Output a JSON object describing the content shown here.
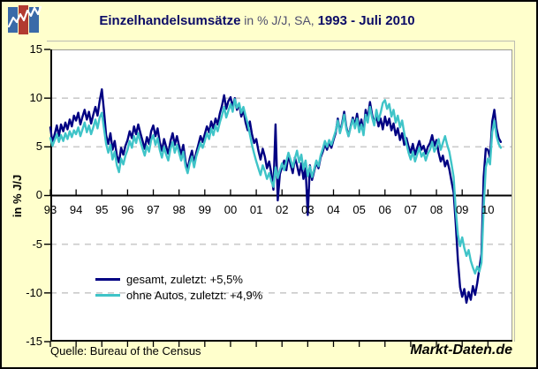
{
  "title": {
    "bold_left": "Einzelhandelsumsätze",
    "regular_middle": " in % J/J, SA, ",
    "bold_right": "1993 - Juli 2010"
  },
  "y_axis": {
    "title": "in % J/J",
    "tick_labels": [
      "15",
      "10",
      "5",
      "0",
      "-5",
      "-10",
      "-15"
    ],
    "tick_values": [
      15,
      10,
      5,
      0,
      -5,
      -10,
      -15
    ]
  },
  "x_axis": {
    "tick_labels": [
      "93",
      "94",
      "95",
      "96",
      "97",
      "98",
      "99",
      "00",
      "01",
      "02",
      "03",
      "04",
      "05",
      "06",
      "07",
      "08",
      "09",
      "10"
    ],
    "tick_years": [
      1993,
      1994,
      1995,
      1996,
      1997,
      1998,
      1999,
      2000,
      2001,
      2002,
      2003,
      2004,
      2005,
      2006,
      2007,
      2008,
      2009,
      2010
    ]
  },
  "legend": {
    "items": [
      {
        "label": "gesamt, zuletzt: +5,5%",
        "color": "#000082"
      },
      {
        "label": "ohne Autos, zuletzt: +4,9%",
        "color": "#3fc4c8"
      }
    ]
  },
  "footer": {
    "source": "Quelle: Bureau of the Census",
    "watermark": "Markt-Daten.de"
  },
  "logo": {
    "bar_colors": [
      "#3a6aa8",
      "#b23b31",
      "#3a6aa8"
    ],
    "line_color": "#ffffff"
  },
  "colors": {
    "background": "#ffffcc",
    "plot_background": "#ffffff",
    "grid": "#cbcbcb",
    "axis": "#000000",
    "frame_gray": "#9a9a94"
  },
  "chart_data": {
    "type": "line",
    "title": "Einzelhandelsumsätze in % J/J, SA, 1993 - Juli 2010",
    "xlabel": "",
    "ylabel": "in % J/J",
    "ylim": [
      -15,
      15
    ],
    "xlim_years": [
      1993.0,
      2010.95
    ],
    "grid_y_values": [
      10,
      5,
      -5,
      -10
    ],
    "grid_style": "dashed horizontal, zero line solid black",
    "legend_position": "inside lower-left",
    "x_description": "monthly values, January 1993 to July 2010 (211 points per series)",
    "x_start_year": 1993,
    "x_step_years": 0.0833333,
    "series": [
      {
        "name": "gesamt, zuletzt: +5,5%",
        "color": "#000082",
        "values": [
          7.0,
          5.4,
          6.3,
          7.2,
          6.1,
          7.3,
          6.6,
          7.5,
          6.8,
          7.8,
          7.1,
          8.2,
          7.7,
          8.5,
          7.3,
          8.1,
          8.8,
          7.8,
          8.6,
          7.4,
          8.3,
          9.1,
          8.2,
          9.7,
          10.9,
          8.7,
          6.2,
          5.3,
          6.4,
          4.7,
          5.6,
          4.1,
          3.4,
          4.9,
          4.2,
          5.1,
          5.7,
          6.6,
          5.9,
          7.1,
          6.3,
          7.3,
          6.4,
          5.6,
          4.8,
          6.0,
          5.3,
          6.6,
          7.2,
          6.1,
          6.9,
          5.5,
          4.6,
          5.8,
          5.0,
          4.3,
          5.6,
          6.4,
          5.2,
          6.1,
          5.1,
          4.2,
          5.2,
          3.5,
          2.6,
          3.8,
          4.6,
          3.3,
          4.4,
          5.2,
          6.1,
          5.5,
          6.3,
          7.1,
          6.5,
          7.6,
          6.9,
          7.9,
          7.3,
          8.4,
          9.2,
          10.3,
          8.9,
          9.7,
          10.1,
          9.1,
          10.0,
          8.8,
          9.4,
          8.1,
          8.8,
          7.5,
          6.7,
          7.6,
          6.3,
          5.4,
          5.8,
          4.6,
          3.7,
          4.8,
          4.0,
          2.8,
          3.5,
          2.3,
          0.6,
          7.3,
          -0.5,
          2.2,
          2.9,
          3.6,
          2.6,
          4.2,
          3.2,
          2.3,
          3.9,
          3.1,
          2.1,
          3.3,
          1.7,
          2.8,
          -2.0,
          3.1,
          1.6,
          2.5,
          3.4,
          2.8,
          3.9,
          4.5,
          5.3,
          4.7,
          5.5,
          4.9,
          5.7,
          6.4,
          7.9,
          6.5,
          7.4,
          8.6,
          7.0,
          6.1,
          7.1,
          8.0,
          7.2,
          8.4,
          6.9,
          7.8,
          6.4,
          8.8,
          7.9,
          9.6,
          8.3,
          7.4,
          8.2,
          7.1,
          7.9,
          6.8,
          8.1,
          7.2,
          7.9,
          6.7,
          7.4,
          6.2,
          6.9,
          5.7,
          6.4,
          5.2,
          5.9,
          5.0,
          4.4,
          5.3,
          4.2,
          4.9,
          5.6,
          4.7,
          5.1,
          4.3,
          5.0,
          5.4,
          6.2,
          5.1,
          5.7,
          4.4,
          3.5,
          4.1,
          3.0,
          3.6,
          2.7,
          1.5,
          0.3,
          -2.9,
          -6.6,
          -9.4,
          -10.4,
          -9.6,
          -11.0,
          -9.9,
          -10.7,
          -9.3,
          -10.2,
          -9.0,
          -7.5,
          -6.0,
          1.9,
          4.8,
          4.7,
          3.9,
          7.6,
          8.8,
          6.9,
          5.9,
          5.5
        ],
        "last_value_label": "+5,5%"
      },
      {
        "name": "ohne Autos, zuletzt: +4,9%",
        "color": "#3fc4c8",
        "values": [
          5.9,
          5.1,
          5.7,
          6.3,
          5.5,
          6.2,
          5.6,
          6.4,
          5.8,
          6.6,
          6.0,
          6.7,
          6.3,
          7.0,
          6.1,
          6.8,
          7.5,
          6.5,
          7.2,
          6.3,
          7.0,
          7.8,
          6.9,
          8.0,
          8.5,
          6.9,
          5.3,
          4.4,
          5.2,
          3.7,
          4.5,
          3.1,
          2.4,
          3.8,
          3.2,
          4.1,
          4.7,
          5.6,
          4.9,
          6.1,
          5.4,
          6.4,
          5.5,
          4.8,
          4.1,
          5.1,
          4.5,
          5.7,
          6.2,
          5.2,
          5.9,
          4.7,
          3.9,
          5.0,
          4.2,
          3.6,
          4.8,
          5.5,
          4.4,
          5.2,
          4.4,
          3.6,
          4.5,
          3.0,
          2.3,
          3.3,
          4.0,
          2.9,
          4.0,
          4.7,
          5.4,
          4.9,
          5.6,
          6.4,
          5.8,
          6.9,
          6.2,
          7.2,
          6.6,
          7.5,
          8.2,
          9.1,
          8.0,
          8.7,
          9.4,
          8.6,
          9.9,
          9.0,
          9.5,
          8.5,
          9.1,
          8.2,
          7.4,
          6.3,
          5.2,
          4.3,
          3.5,
          2.8,
          2.1,
          3.1,
          2.5,
          1.7,
          2.3,
          1.5,
          0.9,
          2.9,
          1.8,
          2.6,
          3.3,
          2.6,
          3.5,
          4.4,
          3.7,
          2.9,
          3.8,
          4.6,
          3.4,
          4.2,
          2.7,
          3.6,
          2.0,
          3.0,
          1.9,
          2.7,
          3.6,
          3.0,
          4.1,
          4.8,
          5.6,
          5.0,
          5.7,
          5.2,
          5.9,
          6.6,
          7.7,
          6.4,
          7.2,
          8.3,
          6.8,
          6.1,
          7.0,
          7.8,
          6.9,
          7.9,
          6.5,
          7.3,
          6.2,
          8.3,
          7.5,
          9.1,
          8.0,
          7.2,
          8.8,
          7.7,
          8.5,
          9.5,
          9.8,
          8.9,
          9.4,
          8.1,
          8.8,
          7.5,
          8.2,
          7.0,
          7.7,
          6.4,
          5.3,
          4.4,
          3.7,
          4.5,
          3.5,
          4.2,
          4.9,
          4.0,
          4.4,
          3.6,
          4.3,
          4.7,
          5.5,
          4.5,
          5.0,
          5.8,
          4.7,
          5.4,
          6.1,
          5.2,
          4.5,
          3.3,
          1.9,
          -1.5,
          -4.0,
          -5.2,
          -4.3,
          -5.4,
          -6.2,
          -5.6,
          -6.7,
          -7.4,
          -8.0,
          -7.3,
          -7.8,
          -6.9,
          -1.3,
          2.9,
          3.8,
          3.2,
          6.5,
          7.7,
          6.1,
          5.3,
          4.9
        ],
        "last_value_label": "+4,9%"
      }
    ]
  }
}
